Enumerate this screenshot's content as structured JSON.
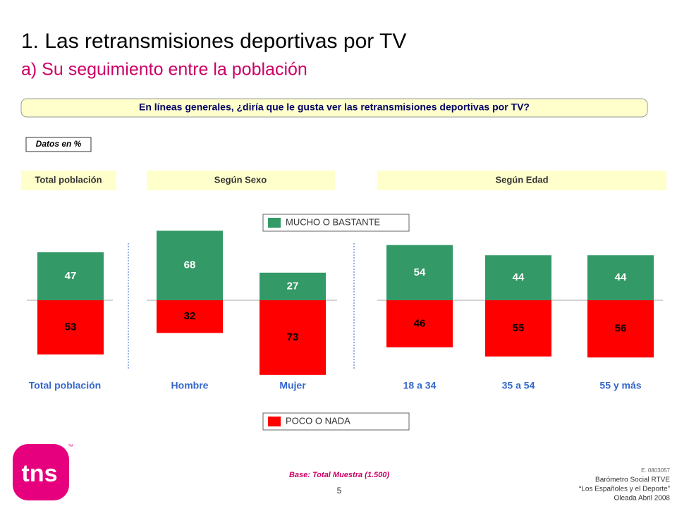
{
  "header": {
    "title": "1. Las retransmisiones deportivas por TV",
    "subtitle": "a) Su seguimiento entre la población"
  },
  "question": "En líneas generales, ¿diría que le gusta ver las retransmisiones deportivas por TV?",
  "data_note": "Datos en %",
  "groups": [
    "Total población",
    "Según Sexo",
    "Según Edad"
  ],
  "chart_data": {
    "type": "diverging-bar",
    "categories": [
      "Total población",
      "Hombre",
      "Mujer",
      "18 a 34",
      "35 a 54",
      "55 y más"
    ],
    "series": [
      {
        "name": "MUCHO O BASTANTE",
        "color": "#339966",
        "values": [
          47,
          68,
          27,
          54,
          44,
          44
        ]
      },
      {
        "name": "POCO O NADA",
        "color": "#ff0000",
        "values": [
          53,
          32,
          73,
          46,
          55,
          56
        ]
      }
    ]
  },
  "footer": {
    "base": "Base: Total Muestra (1.500)",
    "page": "5",
    "code": "E. 0803057",
    "study": "Barómetro Social RTVE",
    "study_title": "“Los Españoles y el Deporte”",
    "wave": "Oleada Abril 2008",
    "logo": "tns",
    "tm": "™"
  }
}
